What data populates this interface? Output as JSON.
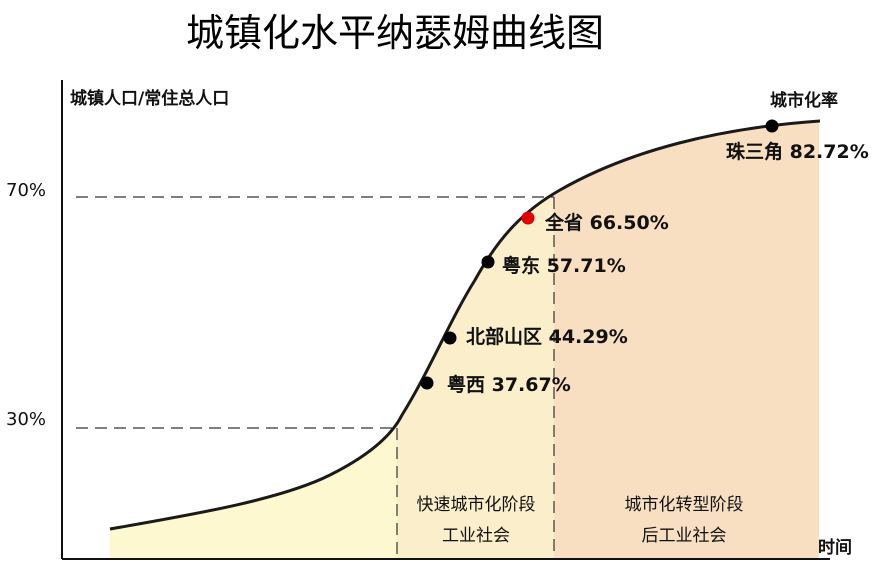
{
  "title": "城镇化水平纳瑟姆曲线图",
  "y_axis_label": "城镇人口/常住总人口",
  "x_axis_label": "时间",
  "curve_label": "城市化率",
  "y_ticks": [
    "70%",
    "30%"
  ],
  "stages": [
    {
      "line1": "快速城市化阶段",
      "line2": "工业社会"
    },
    {
      "line1": "城市化转型阶段",
      "line2": "后工业社会"
    }
  ],
  "points": [
    {
      "label": "粤西 37.67%",
      "color": "#000000"
    },
    {
      "label": "北部山区 44.29%",
      "color": "#000000"
    },
    {
      "label": "粤东 57.71%",
      "color": "#000000"
    },
    {
      "label": "全省 66.50%",
      "color": "#e00000"
    },
    {
      "label": "珠三角 82.72%",
      "color": "#000000"
    }
  ],
  "colors": {
    "stage1_fill": "#fdf8cf",
    "stage2_fill": "#fbeeca",
    "stage3_fill": "#f8dfc2",
    "curve": "#1a1a1a",
    "highlight": "#e00000"
  }
}
